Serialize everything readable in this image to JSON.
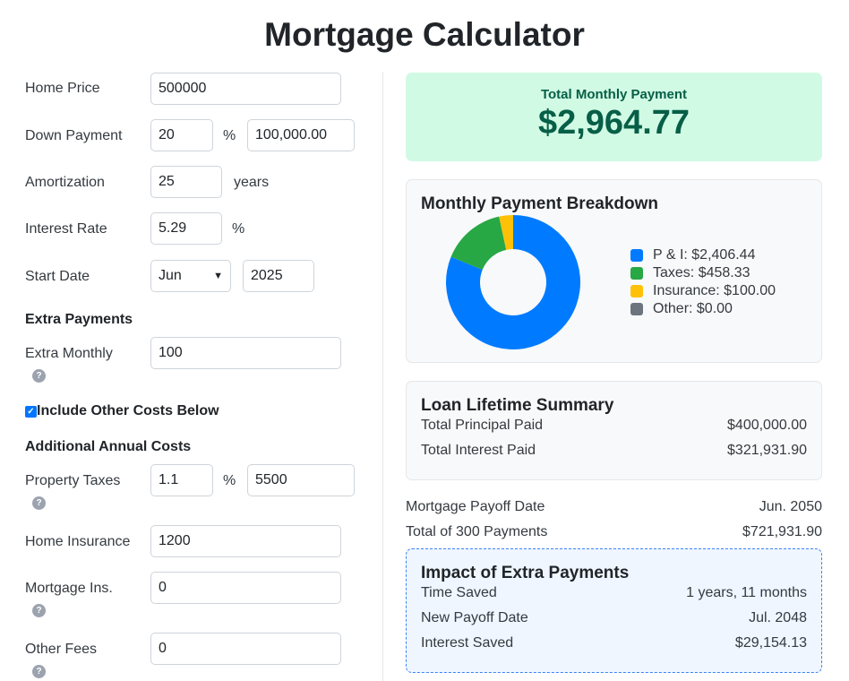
{
  "title": "Mortgage Calculator",
  "form": {
    "home_price": {
      "label": "Home Price",
      "value": "500000"
    },
    "down_payment": {
      "label": "Down Payment",
      "percent": "20",
      "unit": "%",
      "amount": "100,000.00"
    },
    "amortization": {
      "label": "Amortization",
      "value": "25",
      "unit": "years"
    },
    "interest_rate": {
      "label": "Interest Rate",
      "value": "5.29",
      "unit": "%"
    },
    "start_date": {
      "label": "Start Date",
      "month": "Jun",
      "year": "2025"
    },
    "extra_payments_heading": "Extra Payments",
    "extra_monthly": {
      "label": "Extra Monthly",
      "value": "100",
      "help": "?"
    },
    "include_other": {
      "label": "Include Other Costs Below",
      "checked": true
    },
    "additional_heading": "Additional Annual Costs",
    "property_taxes": {
      "label": "Property Taxes",
      "percent": "1.1",
      "unit": "%",
      "amount": "5500",
      "help": "?"
    },
    "home_insurance": {
      "label": "Home Insurance",
      "value": "1200"
    },
    "mortgage_ins": {
      "label": "Mortgage Ins.",
      "value": "0",
      "help": "?"
    },
    "other_fees": {
      "label": "Other Fees",
      "value": "0",
      "help": "?"
    }
  },
  "total": {
    "label": "Total Monthly Payment",
    "value": "$2,964.77"
  },
  "breakdown": {
    "title": "Monthly Payment Breakdown",
    "legend": [
      "P & I: $2,406.44",
      "Taxes: $458.33",
      "Insurance: $100.00",
      "Other: $0.00"
    ]
  },
  "chart_data": {
    "type": "pie",
    "title": "Monthly Payment Breakdown",
    "categories": [
      "P & I",
      "Taxes",
      "Insurance",
      "Other"
    ],
    "values": [
      2406.44,
      458.33,
      100.0,
      0.0
    ],
    "colors": [
      "#007bff",
      "#28a745",
      "#ffc107",
      "#6c757d"
    ],
    "legend_placement": "right"
  },
  "summary": {
    "title": "Loan Lifetime Summary",
    "rows": [
      {
        "label": "Total Principal Paid",
        "value": "$400,000.00"
      },
      {
        "label": "Total Interest Paid",
        "value": "$321,931.90"
      }
    ]
  },
  "payoff": [
    {
      "label": "Mortgage Payoff Date",
      "value": "Jun. 2050"
    },
    {
      "label": "Total of 300 Payments",
      "value": "$721,931.90"
    }
  ],
  "impact": {
    "title": "Impact of Extra Payments",
    "rows": [
      {
        "label": "Time Saved",
        "value": "1 years, 11 months"
      },
      {
        "label": "New Payoff Date",
        "value": "Jul. 2048"
      },
      {
        "label": "Interest Saved",
        "value": "$29,154.13"
      }
    ]
  }
}
